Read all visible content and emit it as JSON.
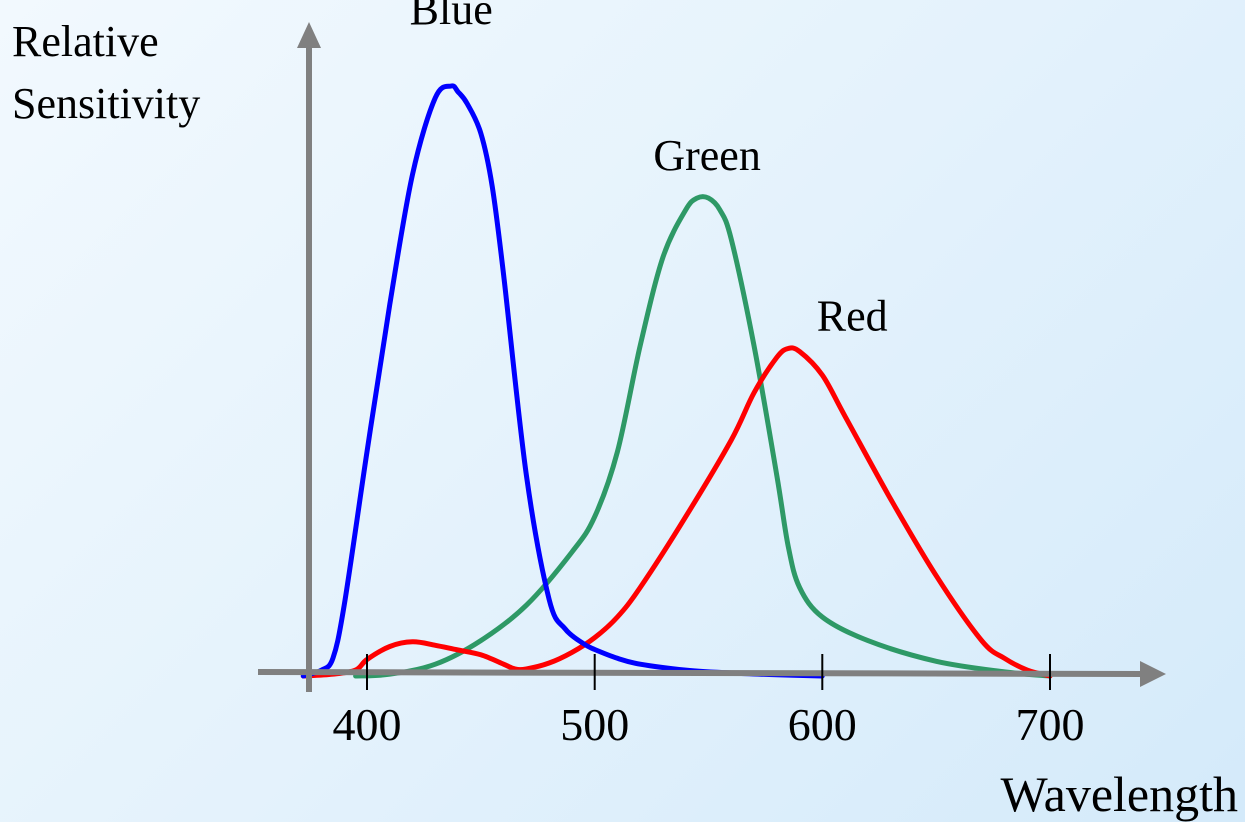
{
  "chart_data": {
    "type": "line",
    "ylabel_lines": [
      "Relative",
      "Sensitivity"
    ],
    "xlabel": "Wavelength",
    "xlim": [
      370,
      740
    ],
    "ylim": [
      0,
      1.02
    ],
    "xticks": [
      400,
      500,
      600,
      700
    ],
    "grid": false,
    "series": [
      {
        "name": "Blue",
        "color": "#0000ff",
        "x": [
          372,
          380,
          385,
          390,
          400,
          410,
          420,
          430,
          437,
          440,
          444,
          450,
          455,
          460,
          470,
          480,
          487,
          495,
          500,
          510,
          520,
          540,
          560,
          580,
          600
        ],
        "y": [
          0.0,
          0.01,
          0.03,
          0.12,
          0.38,
          0.63,
          0.85,
          0.98,
          1.0,
          0.99,
          0.97,
          0.92,
          0.83,
          0.68,
          0.34,
          0.13,
          0.08,
          0.055,
          0.045,
          0.03,
          0.02,
          0.01,
          0.005,
          0.002,
          0.0
        ]
      },
      {
        "name": "Green",
        "color": "#2e9966",
        "x": [
          395,
          410,
          430,
          450,
          470,
          490,
          500,
          510,
          520,
          530,
          540,
          545,
          550,
          555,
          560,
          570,
          580,
          585,
          590,
          600,
          620,
          650,
          680,
          700
        ],
        "y": [
          0.0,
          0.003,
          0.02,
          0.06,
          0.12,
          0.21,
          0.27,
          0.38,
          0.56,
          0.71,
          0.79,
          0.81,
          0.81,
          0.79,
          0.74,
          0.56,
          0.34,
          0.22,
          0.15,
          0.1,
          0.06,
          0.025,
          0.007,
          0.0
        ]
      },
      {
        "name": "Red",
        "color": "#ff0000",
        "x": [
          372,
          385,
          395,
          400,
          410,
          420,
          430,
          440,
          450,
          460,
          465,
          470,
          480,
          490,
          500,
          510,
          520,
          540,
          560,
          570,
          580,
          585,
          590,
          600,
          610,
          630,
          650,
          670,
          680,
          690,
          700
        ],
        "y": [
          0.0,
          0.003,
          0.01,
          0.028,
          0.05,
          0.058,
          0.052,
          0.044,
          0.036,
          0.02,
          0.012,
          0.012,
          0.022,
          0.04,
          0.065,
          0.1,
          0.15,
          0.27,
          0.4,
          0.48,
          0.54,
          0.555,
          0.55,
          0.51,
          0.44,
          0.3,
          0.17,
          0.06,
          0.03,
          0.01,
          0.0
        ]
      }
    ]
  }
}
